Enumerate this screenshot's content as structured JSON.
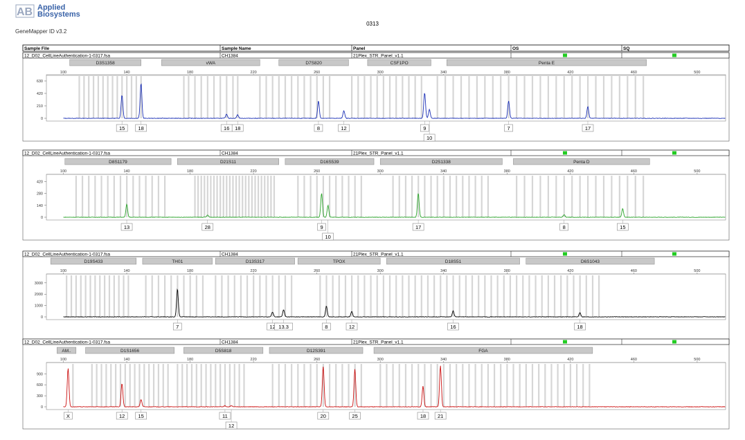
{
  "header": {
    "brand_line1": "Applied",
    "brand_line2": "Biosystems",
    "software": "GeneMapper ID v3.2",
    "title": "0313"
  },
  "table_headers": {
    "sample_file": "Sample File",
    "sample_name": "Sample Name",
    "panel": "Panel",
    "os": "OS",
    "sq": "SQ"
  },
  "colors": {
    "blue": "#1a2fb5",
    "green": "#29a329",
    "black": "#000000",
    "red": "#cc1111",
    "bin": "#d6d6d6",
    "marker": "#c8c8c8",
    "ok": "#22cc22"
  },
  "chart_data": [
    {
      "type": "line",
      "channel": "blue",
      "sample_file": "12_D02_CellLineAuthentication-1-0317.fsa",
      "sample_name": "CH1384",
      "panel": "21Plex_STR_Panel_v1.1",
      "x_ticks": [
        100,
        140,
        180,
        220,
        260,
        300,
        340,
        380,
        420,
        460,
        500
      ],
      "y_ticks": [
        0,
        210,
        420,
        630
      ],
      "ylim": [
        0,
        700
      ],
      "markers": [
        {
          "name": "D3S1358",
          "start": 104,
          "end": 149
        },
        {
          "name": "vWA",
          "start": 162,
          "end": 224
        },
        {
          "name": "D7S820",
          "start": 236,
          "end": 280
        },
        {
          "name": "CSF1PO",
          "start": 292,
          "end": 332
        },
        {
          "name": "Penta E",
          "start": 342,
          "end": 468
        }
      ],
      "bins": [
        110,
        113,
        116,
        119,
        122,
        125,
        128,
        131,
        134,
        137,
        140,
        143,
        146,
        149,
        176,
        179,
        183,
        187,
        191,
        195,
        199,
        203,
        207,
        210,
        224,
        228,
        232,
        236,
        240,
        244,
        248,
        252,
        256,
        260,
        264,
        268,
        282,
        286,
        290,
        294,
        298,
        302,
        306,
        310,
        314,
        318,
        322,
        326,
        336,
        341,
        346,
        351,
        356,
        361,
        366,
        371,
        376,
        381,
        386,
        391,
        396,
        401,
        406,
        411,
        416,
        421,
        426,
        431,
        436,
        441,
        446,
        451,
        456,
        461,
        466
      ],
      "peaks": [
        {
          "label": "15",
          "x": 137.0,
          "height": 390
        },
        {
          "label": "18",
          "x": 149.0,
          "height": 590
        },
        {
          "label": "16",
          "x": 203.0,
          "height": 70
        },
        {
          "label": "18",
          "x": 210.0,
          "height": 60
        },
        {
          "label": "8",
          "x": 261.0,
          "height": 290
        },
        {
          "label": "12",
          "x": 277.0,
          "height": 130
        },
        {
          "label": "9",
          "x": 328.0,
          "height": 430
        },
        {
          "label": "10",
          "x": 331.0,
          "height": 150
        },
        {
          "label": "7",
          "x": 381.0,
          "height": 290
        },
        {
          "label": "17",
          "x": 431.0,
          "height": 200
        }
      ],
      "labels": [
        "15",
        "18",
        "16",
        "18",
        "8",
        "12",
        "9",
        "10",
        "7",
        "17"
      ]
    },
    {
      "type": "line",
      "channel": "green",
      "sample_file": "12_D02_CellLineAuthentication-1-0317.fsa",
      "sample_name": "CH1384",
      "panel": "21Plex_STR_Panel_v1.1",
      "x_ticks": [
        100,
        140,
        180,
        220,
        260,
        300,
        340,
        380,
        420,
        460,
        500
      ],
      "y_ticks": [
        0,
        140,
        280,
        420
      ],
      "ylim": [
        0,
        480
      ],
      "markers": [
        {
          "name": "D8S1179",
          "start": 101,
          "end": 168
        },
        {
          "name": "D21S11",
          "start": 172,
          "end": 236
        },
        {
          "name": "D16S539",
          "start": 240,
          "end": 296
        },
        {
          "name": "D2S1338",
          "start": 300,
          "end": 377
        },
        {
          "name": "Penta D",
          "start": 384,
          "end": 470
        }
      ],
      "bins": [
        108,
        112,
        116,
        120,
        124,
        128,
        132,
        136,
        140,
        144,
        148,
        152,
        156,
        160,
        164,
        183,
        185,
        187,
        189,
        191,
        193,
        195,
        197,
        199,
        201,
        203,
        205,
        207,
        209,
        211,
        213,
        215,
        217,
        219,
        221,
        223,
        225,
        227,
        229,
        231,
        233,
        248,
        252,
        256,
        260,
        264,
        268,
        272,
        276,
        280,
        284,
        288,
        308,
        312,
        316,
        320,
        324,
        328,
        332,
        336,
        340,
        344,
        348,
        352,
        356,
        360,
        364,
        368,
        386,
        391,
        396,
        401,
        406,
        411,
        416,
        421,
        426,
        431,
        436,
        441,
        446,
        451,
        456,
        461,
        466
      ],
      "peaks": [
        {
          "label": "13",
          "x": 140.0,
          "height": 150
        },
        {
          "label": "28",
          "x": 191.0,
          "height": 25
        },
        {
          "label": "9",
          "x": 263.0,
          "height": 280
        },
        {
          "label": "10",
          "x": 267.0,
          "height": 140
        },
        {
          "label": "17",
          "x": 324.0,
          "height": 280
        },
        {
          "label": "8",
          "x": 416.0,
          "height": 30
        },
        {
          "label": "15",
          "x": 453.0,
          "height": 100
        }
      ],
      "labels": [
        "13",
        "28",
        "9",
        "10",
        "17",
        "8",
        "15"
      ]
    },
    {
      "type": "line",
      "channel": "black",
      "sample_file": "12_D02_CellLineAuthentication-1-0317.fsa",
      "sample_name": "CH1384",
      "panel": "21Plex_STR_Panel_v1.1",
      "x_ticks": [
        100,
        140,
        180,
        220,
        260,
        300,
        340,
        380,
        420,
        460,
        500
      ],
      "y_ticks": [
        0,
        1000,
        2000,
        3000
      ],
      "ylim": [
        0,
        3600
      ],
      "markers": [
        {
          "name": "D19S433",
          "start": 92,
          "end": 146
        },
        {
          "name": "TH01",
          "start": 150,
          "end": 194
        },
        {
          "name": "D13S317",
          "start": 196,
          "end": 246
        },
        {
          "name": "TPOX",
          "start": 248,
          "end": 300
        },
        {
          "name": "D18S51",
          "start": 304,
          "end": 388
        },
        {
          "name": "D6S1043",
          "start": 392,
          "end": 473
        }
      ],
      "bins": [
        102,
        105,
        108,
        111,
        114,
        117,
        120,
        123,
        126,
        129,
        132,
        135,
        138,
        141,
        152,
        156,
        160,
        164,
        168,
        172,
        176,
        180,
        184,
        188,
        196,
        200,
        204,
        208,
        212,
        216,
        220,
        224,
        228,
        232,
        236,
        240,
        244,
        262,
        266,
        270,
        274,
        278,
        282,
        286,
        290,
        294,
        298,
        302,
        306,
        310,
        314,
        318,
        322,
        326,
        330,
        334,
        338,
        342,
        346,
        350,
        354,
        358,
        362,
        366,
        370,
        374,
        378,
        382,
        386,
        390,
        394,
        398,
        402,
        406,
        410,
        414,
        418,
        422,
        426,
        430,
        434,
        438
      ],
      "peaks": [
        {
          "label": "7",
          "x": 172.0,
          "height": 2450
        },
        {
          "label": "12",
          "x": 232.0,
          "height": 420
        },
        {
          "label": "13.3",
          "x": 239.0,
          "height": 620
        },
        {
          "label": "8",
          "x": 266.0,
          "height": 950
        },
        {
          "label": "12",
          "x": 282.0,
          "height": 460
        },
        {
          "label": "16",
          "x": 346.0,
          "height": 530
        },
        {
          "label": "18",
          "x": 426.0,
          "height": 380
        }
      ],
      "labels": [
        "7",
        "12",
        "13.3",
        "8",
        "12",
        "16",
        "18"
      ]
    },
    {
      "type": "line",
      "channel": "red",
      "sample_file": "12_D02_CellLineAuthentication-1-0317.fsa",
      "sample_name": "CH1384",
      "panel": "21Plex_STR_Panel_v1.1",
      "x_ticks": [
        100,
        140,
        180,
        220,
        260,
        300,
        340,
        380,
        420,
        460,
        500
      ],
      "y_ticks": [
        0,
        300,
        600,
        900
      ],
      "ylim": [
        0,
        1150
      ],
      "markers": [
        {
          "name": "AM..",
          "start": 96,
          "end": 108
        },
        {
          "name": "D1S1656",
          "start": 114,
          "end": 170
        },
        {
          "name": "D5S818",
          "start": 176,
          "end": 226
        },
        {
          "name": "D12S391",
          "start": 230,
          "end": 289
        },
        {
          "name": "FGA",
          "start": 296,
          "end": 434
        }
      ],
      "bins": [
        106,
        118,
        121,
        124,
        127,
        130,
        133,
        136,
        139,
        142,
        145,
        148,
        151,
        154,
        157,
        160,
        163,
        166,
        172,
        175,
        178,
        181,
        184,
        187,
        190,
        193,
        196,
        199,
        202,
        205,
        208,
        211,
        214,
        232,
        236,
        240,
        244,
        248,
        252,
        256,
        260,
        264,
        268,
        272,
        276,
        280,
        284,
        288,
        300,
        304,
        308,
        312,
        316,
        320,
        324,
        328,
        332,
        336,
        340,
        344,
        348,
        352,
        356,
        360,
        364,
        368,
        372,
        376,
        380,
        384,
        388,
        392,
        396,
        400,
        404,
        408,
        412,
        416,
        420,
        424,
        428,
        432
      ],
      "peaks": [
        {
          "label": "X",
          "x": 103.0,
          "height": 1050
        },
        {
          "label": "12",
          "x": 137.0,
          "height": 640
        },
        {
          "label": "15",
          "x": 149.0,
          "height": 200
        },
        {
          "label": "11",
          "x": 202.0,
          "height": 30
        },
        {
          "label": "12",
          "x": 206.0,
          "height": 30
        },
        {
          "label": "20",
          "x": 264.0,
          "height": 1100
        },
        {
          "label": "25",
          "x": 284.0,
          "height": 1020
        },
        {
          "label": "18",
          "x": 327.0,
          "height": 560
        },
        {
          "label": "21",
          "x": 338.0,
          "height": 1120
        }
      ],
      "labels": [
        "X",
        "12",
        "15",
        "11",
        "12",
        "20",
        "25",
        "18",
        "21"
      ]
    }
  ]
}
